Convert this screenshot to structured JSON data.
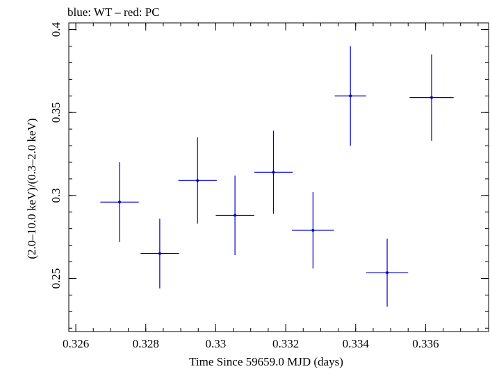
{
  "chart_data": {
    "type": "scatter",
    "title": "blue: WT – red: PC",
    "xlabel": "Time Since 59659.0 MJD (days)",
    "ylabel": "(2.0–10.0 keV)/(0.3–2.0 keV)",
    "xlim": [
      0.3258,
      0.3378
    ],
    "ylim": [
      0.218,
      0.404
    ],
    "x_ticks": [
      {
        "value": 0.326,
        "label": "0.326"
      },
      {
        "value": 0.328,
        "label": "0.328"
      },
      {
        "value": 0.33,
        "label": "0.33"
      },
      {
        "value": 0.332,
        "label": "0.332"
      },
      {
        "value": 0.334,
        "label": "0.334"
      },
      {
        "value": 0.336,
        "label": "0.336"
      }
    ],
    "y_ticks": [
      {
        "value": 0.25,
        "label": "0.25"
      },
      {
        "value": 0.3,
        "label": "0.3"
      },
      {
        "value": 0.35,
        "label": "0.35"
      },
      {
        "value": 0.4,
        "label": "0.4"
      }
    ],
    "x_minor_step": 0.0005,
    "y_minor_step": 0.01,
    "grid": false,
    "series": [
      {
        "color": "#0000cc",
        "points": [
          {
            "x": 0.32725,
            "xerr": 0.00055,
            "y": 0.296,
            "yerr_low": 0.024,
            "yerr_high": 0.024
          },
          {
            "x": 0.3284,
            "xerr": 0.00055,
            "y": 0.265,
            "yerr_low": 0.021,
            "yerr_high": 0.021
          },
          {
            "x": 0.32948,
            "xerr": 0.00055,
            "y": 0.309,
            "yerr_low": 0.026,
            "yerr_high": 0.026
          },
          {
            "x": 0.33055,
            "xerr": 0.00055,
            "y": 0.288,
            "yerr_low": 0.024,
            "yerr_high": 0.024
          },
          {
            "x": 0.33165,
            "xerr": 0.00055,
            "y": 0.314,
            "yerr_low": 0.025,
            "yerr_high": 0.025
          },
          {
            "x": 0.33278,
            "xerr": 0.0006,
            "y": 0.279,
            "yerr_low": 0.023,
            "yerr_high": 0.023
          },
          {
            "x": 0.33385,
            "xerr": 0.00045,
            "y": 0.36,
            "yerr_low": 0.03,
            "yerr_high": 0.03
          },
          {
            "x": 0.3349,
            "xerr": 0.0006,
            "y": 0.2535,
            "yerr_low": 0.0205,
            "yerr_high": 0.0205
          },
          {
            "x": 0.33617,
            "xerr": 0.00063,
            "y": 0.359,
            "yerr_low": 0.026,
            "yerr_high": 0.026
          }
        ]
      }
    ]
  }
}
